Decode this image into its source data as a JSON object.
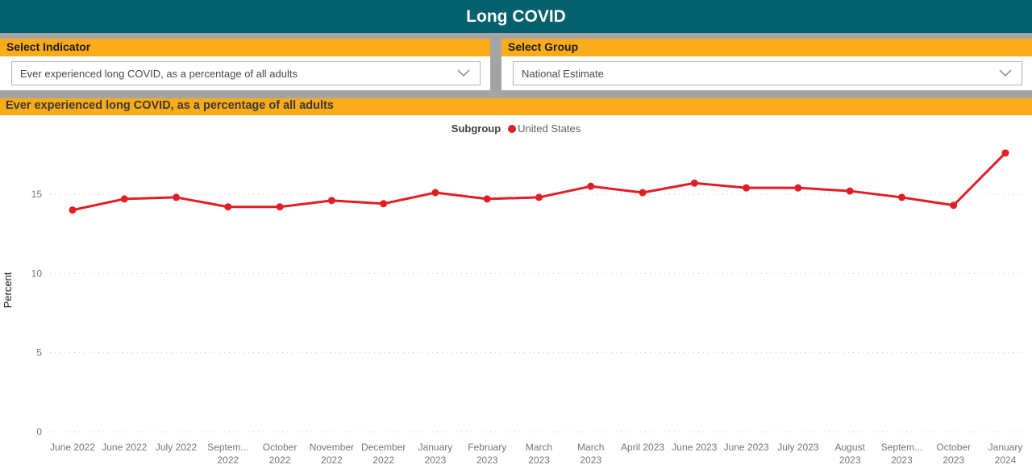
{
  "header": {
    "title": "Long COVID"
  },
  "filters": {
    "indicator": {
      "label": "Select Indicator",
      "value": "Ever experienced long COVID, as a percentage of all adults"
    },
    "group": {
      "label": "Select Group",
      "value": "National Estimate"
    }
  },
  "chart_title": "Ever experienced long COVID, as a percentage of all adults",
  "legend": {
    "label": "Subgroup",
    "series_name": "United States"
  },
  "colors": {
    "header_teal": "#05606D",
    "accent_orange": "#FAAB19",
    "line_red": "#E01E25",
    "background_gray": "#A3A4A6",
    "axis_text_gray": "#757575"
  },
  "chart_data": {
    "type": "line",
    "title": "Ever experienced long COVID, as a percentage of all adults",
    "xlabel": "",
    "ylabel": "Percent",
    "yticks": [
      0,
      5,
      10,
      15
    ],
    "ylim": [
      0,
      18.5
    ],
    "grid": "dotted-horizontal",
    "legend_position": "top-center",
    "categories": [
      "June 2022",
      "June 2022",
      "July 2022",
      "Septem...\n2022",
      "October\n2022",
      "November\n2022",
      "December\n2022",
      "January\n2023",
      "February\n2023",
      "March\n2023",
      "March\n2023",
      "April 2023",
      "June 2023",
      "June 2023",
      "July 2023",
      "August\n2023",
      "Septem...\n2023",
      "October\n2023",
      "January\n2024"
    ],
    "series": [
      {
        "name": "United States",
        "color": "#E01E25",
        "values": [
          14.0,
          14.7,
          14.8,
          14.2,
          14.2,
          14.6,
          14.4,
          15.1,
          14.7,
          14.8,
          15.5,
          15.1,
          15.7,
          15.4,
          15.4,
          15.2,
          14.8,
          14.3,
          17.6
        ]
      }
    ]
  }
}
